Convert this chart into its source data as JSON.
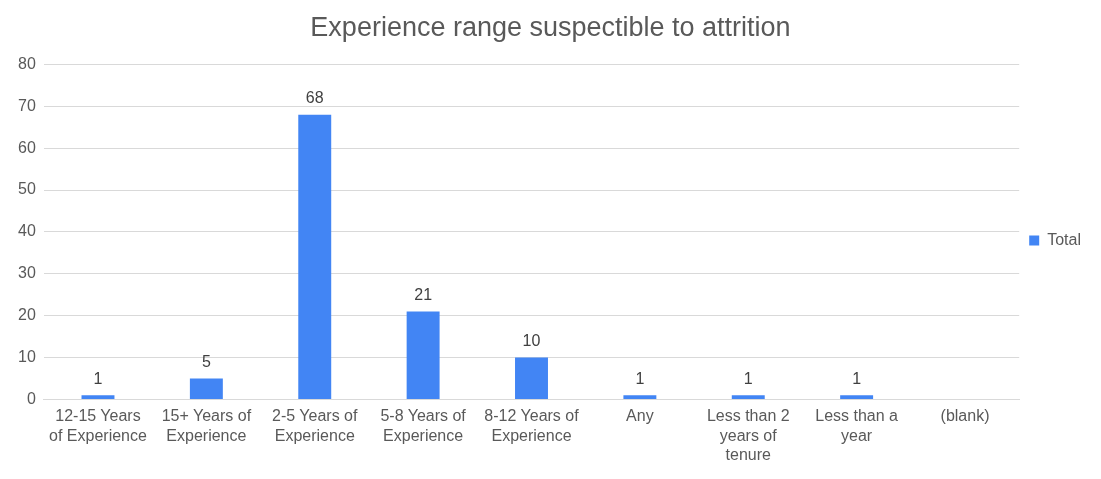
{
  "chart_data": {
    "type": "bar",
    "title": "Experience range suspectible to attrition",
    "categories": [
      "12-15 Years of Experience",
      "15+ Years of Experience",
      "2-5 Years of Experience",
      "5-8 Years of Experience",
      "8-12 Years of Experience",
      "Any",
      "Less than 2 years of tenure",
      "Less than a year",
      "(blank)"
    ],
    "series": [
      {
        "name": "Total",
        "color": "#4285f4",
        "values": [
          1,
          5,
          68,
          21,
          10,
          1,
          1,
          1,
          null
        ]
      }
    ],
    "ylim": [
      0,
      80
    ],
    "yticks": [
      0,
      10,
      20,
      30,
      40,
      50,
      60,
      70,
      80
    ],
    "grid": "y",
    "legend": "right",
    "data_labels": true
  }
}
